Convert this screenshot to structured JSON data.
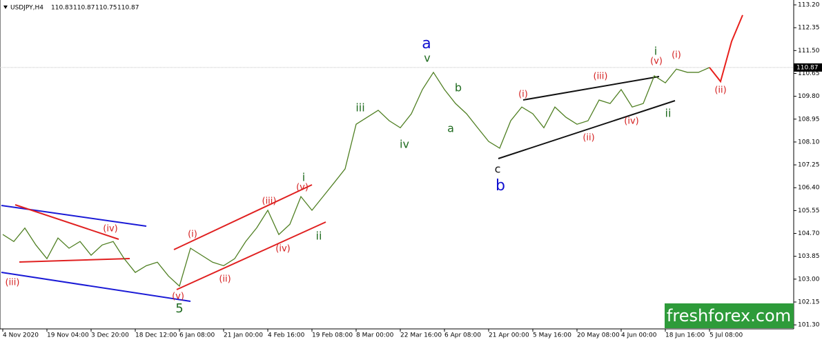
{
  "chart_data": {
    "type": "line",
    "symbol": "USDJPY,H4",
    "ohlc": [
      110.83,
      110.87,
      110.75,
      110.87
    ],
    "current_price": 110.87,
    "watermark": "freshforex.com",
    "categories": [
      "4 Nov 2020",
      null,
      null,
      null,
      "19 Nov 04:00",
      null,
      null,
      null,
      "3 Dec 20:00",
      null,
      null,
      null,
      "18 Dec 12:00",
      null,
      null,
      null,
      "6 Jan 08:00",
      null,
      null,
      null,
      "21 Jan 00:00",
      null,
      null,
      null,
      "4 Feb 16:00",
      null,
      null,
      null,
      "19 Feb 08:00",
      null,
      null,
      null,
      "8 Mar 00:00",
      null,
      null,
      null,
      "22 Mar 16:00",
      null,
      null,
      null,
      "6 Apr 08:00",
      null,
      null,
      null,
      "21 Apr 00:00",
      null,
      null,
      null,
      "5 May 16:00",
      null,
      null,
      null,
      "20 May 08:00",
      null,
      null,
      null,
      "4 Jun 00:00",
      null,
      null,
      null,
      "18 Jun 16:00",
      null,
      null,
      null,
      "5 Jul 08:00",
      null,
      null,
      null
    ],
    "series": [
      {
        "color": "#4f7f22",
        "values": [
          104.66,
          104.4,
          104.9,
          104.27,
          103.76,
          104.53,
          104.15,
          104.4,
          103.89,
          104.27,
          104.4,
          103.76,
          103.25,
          103.5,
          103.63,
          103.12,
          102.74,
          104.15,
          103.89,
          103.63,
          103.5,
          103.76,
          104.4,
          104.91,
          105.56,
          104.66,
          105.04,
          106.07,
          105.56,
          106.07,
          106.58,
          107.1,
          108.76,
          109.02,
          109.28,
          108.89,
          108.63,
          109.15,
          110.05,
          110.69,
          110.05,
          109.53,
          109.15,
          108.63,
          108.12,
          107.87,
          108.89,
          109.4,
          109.15,
          108.63,
          109.4,
          109.02,
          108.76,
          108.89,
          109.66,
          109.53,
          110.05,
          109.4,
          109.53,
          110.56,
          110.3,
          110.81,
          110.69,
          110.69,
          110.87,
          null,
          null,
          null
        ]
      },
      {
        "color": "#e8201c",
        "values": [
          null,
          null,
          null,
          null,
          null,
          null,
          null,
          null,
          null,
          null,
          null,
          null,
          null,
          null,
          null,
          null,
          null,
          null,
          null,
          null,
          null,
          null,
          null,
          null,
          null,
          null,
          null,
          null,
          null,
          null,
          null,
          null,
          null,
          null,
          null,
          null,
          null,
          null,
          null,
          null,
          null,
          null,
          null,
          null,
          null,
          null,
          null,
          null,
          null,
          null,
          null,
          null,
          null,
          null,
          null,
          null,
          null,
          null,
          null,
          null,
          null,
          null,
          null,
          null,
          110.87,
          110.35,
          111.84,
          112.82
        ]
      }
    ],
    "ylim": [
      101.15,
      113.38
    ],
    "yticks": [
      {
        "value": 101.3,
        "label": "101.30"
      },
      102.15,
      {
        "value": 103,
        "label": "103.00"
      },
      103.85,
      {
        "value": 104.7,
        "label": "104.70"
      },
      105.55,
      {
        "value": 106.4,
        "label": "106.40"
      },
      107.25,
      {
        "value": 108.1,
        "label": "108.10"
      },
      108.95,
      {
        "value": 109.8,
        "label": "109.80"
      },
      110.65,
      {
        "value": 111.5,
        "label": "111.50"
      },
      112.35,
      {
        "value": 113.2,
        "label": "113.20"
      }
    ],
    "annotations": [
      {
        "text": "(iii)",
        "color": "#d42020"
      },
      {
        "text": "(iv)",
        "color": "#d42020"
      },
      {
        "text": "5",
        "color": "#1f6b1f"
      },
      {
        "text": "(v)",
        "color": "#d42020"
      },
      {
        "text": "(i)",
        "color": "#d42020"
      },
      {
        "text": "(ii)",
        "color": "#d42020"
      },
      {
        "text": "(iii)",
        "color": "#d42020"
      },
      {
        "text": "(iv)",
        "color": "#d42020"
      },
      {
        "text": "(v)",
        "color": "#d42020"
      },
      {
        "text": "i",
        "color": "#1f6b1f"
      },
      {
        "text": "ii",
        "color": "#1f6b1f"
      },
      {
        "text": "iii",
        "color": "#1f6b1f"
      },
      {
        "text": "iv",
        "color": "#1f6b1f"
      },
      {
        "text": "a",
        "color": "#1010d0"
      },
      {
        "text": "v",
        "color": "#1f6b1f"
      },
      {
        "text": "b",
        "color": "#1f6b1f"
      },
      {
        "text": "a",
        "color": "#1f6b1f"
      },
      {
        "text": "c",
        "color": "#111111"
      },
      {
        "text": "b",
        "color": "#1010d0"
      },
      {
        "text": "(i)",
        "color": "#d42020"
      },
      {
        "text": "(ii)",
        "color": "#d42020"
      },
      {
        "text": "(iii)",
        "color": "#d42020"
      },
      {
        "text": "(iv)",
        "color": "#d42020"
      },
      {
        "text": "(v)",
        "color": "#d42020"
      },
      {
        "text": "i",
        "color": "#1f6b1f"
      },
      {
        "text": "ii",
        "color": "#1f6b1f"
      },
      {
        "text": "(i)",
        "color": "#d42020"
      },
      {
        "text": "(ii)",
        "color": "#d42020"
      }
    ]
  }
}
